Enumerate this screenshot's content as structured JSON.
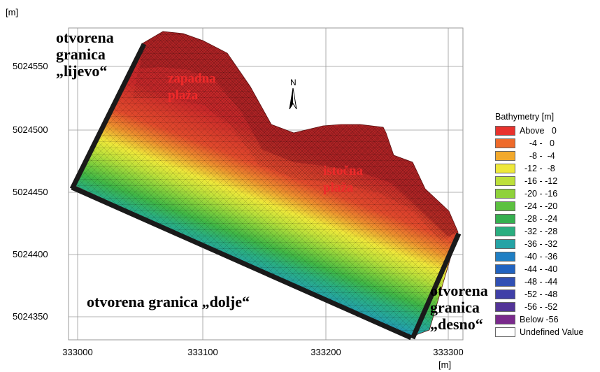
{
  "axes": {
    "y_unit": "[m]",
    "x_unit": "[m]",
    "y_ticks": [
      "5024550",
      "5024500",
      "5024450",
      "5024400",
      "5024350"
    ],
    "x_ticks": [
      "333000",
      "333100",
      "333200",
      "333300"
    ]
  },
  "north_arrow_label": "N",
  "boundaries": {
    "left": "otvorena\ngranica\n„lijevo“",
    "bottom": "otvorena granica „dolje“",
    "right": "otvorena\ngranica\n„desno“"
  },
  "beaches": {
    "west": "zapadna\nplaža",
    "east": "istočna\nplaža"
  },
  "legend": {
    "title": "Bathymetry [m]",
    "items": [
      {
        "label": "Above   0",
        "color": "#e8322d"
      },
      {
        "label": "    -4 -   0",
        "color": "#ee6a2a"
      },
      {
        "label": "    -8 -  -4",
        "color": "#f2a92c"
      },
      {
        "label": "  -12 -  -8",
        "color": "#eee83a"
      },
      {
        "label": "  -16 - -12",
        "color": "#bde03a"
      },
      {
        "label": "  -20 - -16",
        "color": "#8fd23a"
      },
      {
        "label": "  -24 - -20",
        "color": "#5cc140"
      },
      {
        "label": "  -28 - -24",
        "color": "#35b04f"
      },
      {
        "label": "  -32 - -28",
        "color": "#2aae80"
      },
      {
        "label": "  -36 - -32",
        "color": "#25a3a5"
      },
      {
        "label": "  -40 - -36",
        "color": "#1f7fc4"
      },
      {
        "label": "  -44 - -40",
        "color": "#2163c0"
      },
      {
        "label": "  -48 - -44",
        "color": "#3150b4"
      },
      {
        "label": "  -52 - -48",
        "color": "#4040a8"
      },
      {
        "label": "  -56 - -52",
        "color": "#533498"
      },
      {
        "label": "Below -56",
        "color": "#7a2a8c"
      },
      {
        "label": "Undefined Value",
        "color": "#ffffff"
      }
    ]
  }
}
